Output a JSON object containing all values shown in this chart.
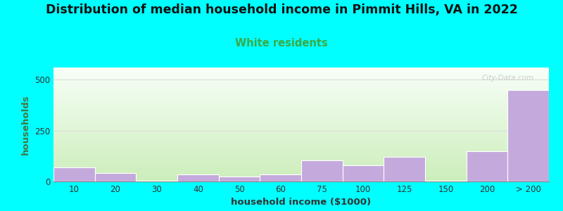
{
  "title": "Distribution of median household income in Pimmit Hills, VA in 2022",
  "subtitle": "White residents",
  "xlabel": "household income ($1000)",
  "ylabel": "households",
  "background_color": "#00FFFF",
  "bar_color": "#C4AADC",
  "bar_edge_color": "#FFFFFF",
  "categories": [
    "10",
    "20",
    "30",
    "40",
    "50",
    "60",
    "75",
    "100",
    "125",
    "150",
    "200",
    "> 200"
  ],
  "values": [
    70,
    40,
    5,
    35,
    25,
    35,
    105,
    80,
    120,
    5,
    150,
    450
  ],
  "bar_lefts": [
    0,
    1,
    2,
    3,
    4,
    5,
    6,
    7,
    8,
    9,
    10,
    11
  ],
  "ylim": [
    0,
    560
  ],
  "yticks": [
    0,
    250,
    500
  ],
  "title_fontsize": 12.5,
  "subtitle_fontsize": 10.5,
  "subtitle_color": "#3AAA44",
  "axis_label_fontsize": 9.5,
  "tick_fontsize": 8.5,
  "watermark_text": "City-Data.com",
  "watermark_color": "#BBBBBB",
  "plot_bg_top_color": "#F8FFF8",
  "plot_bg_bottom_color": "#CCEEBB",
  "grid_color": "#DDDDDD"
}
